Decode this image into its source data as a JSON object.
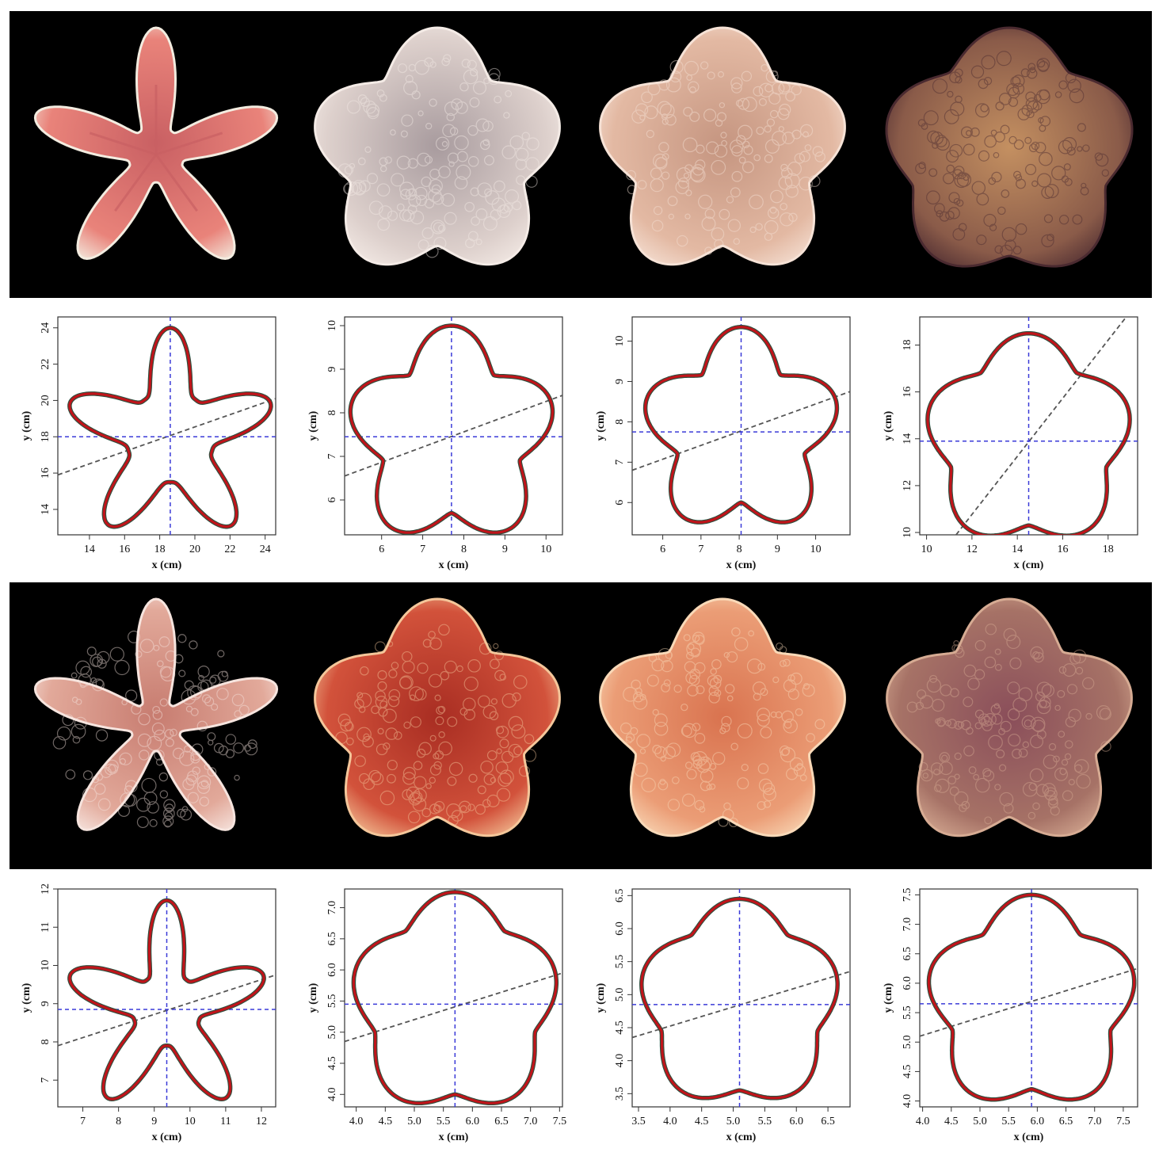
{
  "figure": {
    "colors": {
      "outline_fit": "#c0141a",
      "outline_raw": "#2f4f3f",
      "centroid_lines": "#3a3ad8",
      "orientation_line": "#555555",
      "photo_background": "#000000"
    },
    "photo_rows": [
      {
        "specimens": [
          {
            "shape": "slender-five-armed",
            "palette": [
              "#e9837a",
              "#c96063",
              "#f3ece0"
            ]
          },
          {
            "shape": "cushion-pentagon",
            "palette": [
              "#ddd0cc",
              "#a89b9e",
              "#f4ebe6"
            ]
          },
          {
            "shape": "cushion-pentagon",
            "palette": [
              "#e3b9a3",
              "#c59580",
              "#f6e2d6"
            ]
          },
          {
            "shape": "flat-pentagon",
            "palette": [
              "#8a5b49",
              "#c49061",
              "#4a2a30"
            ]
          }
        ]
      },
      {
        "specimens": [
          {
            "shape": "knobby-five-armed",
            "palette": [
              "#e2a99a",
              "#c77c70",
              "#f6e4de"
            ]
          },
          {
            "shape": "plated-pentagon",
            "palette": [
              "#d2523b",
              "#a82d22",
              "#f4c69a"
            ]
          },
          {
            "shape": "plated-pentagon",
            "palette": [
              "#eb9d76",
              "#d9734f",
              "#f9d9b8"
            ]
          },
          {
            "shape": "plated-pentagon",
            "palette": [
              "#a67266",
              "#8a4e5a",
              "#d6ab93"
            ]
          }
        ]
      }
    ]
  },
  "chart_data": [
    {
      "type": "line",
      "title": "",
      "xlabel": "x (cm)",
      "ylabel": "y (cm)",
      "xlim": [
        12.2,
        24.6
      ],
      "ylim": [
        12.6,
        24.6
      ],
      "xticks": [
        "14",
        "16",
        "18",
        "20",
        "22",
        "24"
      ],
      "yticks": [
        "14",
        "16",
        "18",
        "20",
        "22",
        "24"
      ],
      "outline": {
        "shape": "star",
        "center": [
          18.6,
          18.0
        ],
        "outer_radius": 6.0,
        "inner_radius": 2.5,
        "rotation_deg": 0
      },
      "centroid": [
        18.6,
        18.0
      ],
      "orientation_line": [
        [
          12.2,
          15.9
        ],
        [
          24.6,
          20.1
        ]
      ]
    },
    {
      "type": "line",
      "title": "",
      "xlabel": "x (cm)",
      "ylabel": "y (cm)",
      "xlim": [
        5.1,
        10.4
      ],
      "ylim": [
        5.2,
        10.2
      ],
      "xticks": [
        "6",
        "7",
        "8",
        "9",
        "10"
      ],
      "yticks": [
        "6",
        "7",
        "8",
        "9",
        "10"
      ],
      "outline": {
        "shape": "pentagon",
        "center": [
          7.7,
          7.45
        ],
        "outer_radius": 2.55,
        "inner_radius": 1.75,
        "rotation_deg": 0
      },
      "centroid": [
        7.7,
        7.45
      ],
      "orientation_line": [
        [
          5.1,
          6.55
        ],
        [
          10.4,
          8.4
        ]
      ]
    },
    {
      "type": "line",
      "title": "",
      "xlabel": "x (cm)",
      "ylabel": "y (cm)",
      "xlim": [
        5.2,
        10.9
      ],
      "ylim": [
        5.2,
        10.6
      ],
      "xticks": [
        "6",
        "7",
        "8",
        "9",
        "10"
      ],
      "yticks": [
        "6",
        "7",
        "8",
        "9",
        "10"
      ],
      "outline": {
        "shape": "pentagon",
        "center": [
          8.05,
          7.75
        ],
        "outer_radius": 2.6,
        "inner_radius": 1.75,
        "rotation_deg": 0
      },
      "centroid": [
        8.05,
        7.75
      ],
      "orientation_line": [
        [
          5.2,
          6.8
        ],
        [
          10.9,
          8.75
        ]
      ]
    },
    {
      "type": "line",
      "title": "",
      "xlabel": "x (cm)",
      "ylabel": "y (cm)",
      "xlim": [
        9.7,
        19.3
      ],
      "ylim": [
        9.9,
        19.2
      ],
      "xticks": [
        "10",
        "12",
        "14",
        "16",
        "18"
      ],
      "yticks": [
        "10",
        "12",
        "14",
        "16",
        "18"
      ],
      "outline": {
        "shape": "pentagon",
        "center": [
          14.5,
          13.9
        ],
        "outer_radius": 4.6,
        "inner_radius": 3.6,
        "rotation_deg": 0
      },
      "centroid": [
        14.5,
        13.9
      ],
      "orientation_line": [
        [
          11.3,
          9.9
        ],
        [
          18.8,
          19.2
        ]
      ]
    },
    {
      "type": "line",
      "title": "",
      "xlabel": "x (cm)",
      "ylabel": "y (cm)",
      "xlim": [
        6.3,
        12.4
      ],
      "ylim": [
        6.3,
        12.0
      ],
      "xticks": [
        "7",
        "8",
        "9",
        "10",
        "11",
        "12"
      ],
      "yticks": [
        "7",
        "8",
        "9",
        "10",
        "11",
        "12"
      ],
      "outline": {
        "shape": "star",
        "center": [
          9.35,
          8.85
        ],
        "outer_radius": 2.85,
        "inner_radius": 0.95,
        "rotation_deg": 0
      },
      "centroid": [
        9.35,
        8.85
      ],
      "orientation_line": [
        [
          6.3,
          7.9
        ],
        [
          12.4,
          9.75
        ]
      ]
    },
    {
      "type": "line",
      "title": "",
      "xlabel": "x (cm)",
      "ylabel": "y (cm)",
      "xlim": [
        3.8,
        7.55
      ],
      "ylim": [
        3.8,
        7.3
      ],
      "xticks": [
        "4.0",
        "4.5",
        "5.0",
        "5.5",
        "6.0",
        "6.5",
        "7.0",
        "7.5"
      ],
      "yticks": [
        "4.0",
        "4.5",
        "5.0",
        "5.5",
        "6.0",
        "6.5",
        "7.0"
      ],
      "outline": {
        "shape": "pentagon",
        "center": [
          5.7,
          5.45
        ],
        "outer_radius": 1.8,
        "inner_radius": 1.45,
        "rotation_deg": 0
      },
      "centroid": [
        5.7,
        5.45
      ],
      "orientation_line": [
        [
          3.8,
          4.85
        ],
        [
          7.55,
          5.95
        ]
      ]
    },
    {
      "type": "line",
      "title": "",
      "xlabel": "x (cm)",
      "ylabel": "y (cm)",
      "xlim": [
        3.4,
        6.85
      ],
      "ylim": [
        3.3,
        6.6
      ],
      "xticks": [
        "3.5",
        "4.0",
        "4.5",
        "5.0",
        "5.5",
        "6.0",
        "6.5"
      ],
      "yticks": [
        "3.5",
        "4.0",
        "4.5",
        "5.0",
        "5.5",
        "6.0",
        "6.5"
      ],
      "outline": {
        "shape": "pentagon",
        "center": [
          5.1,
          4.85
        ],
        "outer_radius": 1.6,
        "inner_radius": 1.3,
        "rotation_deg": 0
      },
      "centroid": [
        5.1,
        4.85
      ],
      "orientation_line": [
        [
          3.4,
          4.35
        ],
        [
          6.85,
          5.35
        ]
      ]
    },
    {
      "type": "line",
      "title": "",
      "xlabel": "x (cm)",
      "ylabel": "y (cm)",
      "xlim": [
        3.95,
        7.75
      ],
      "ylim": [
        3.9,
        7.6
      ],
      "xticks": [
        "4.0",
        "4.5",
        "5.0",
        "5.5",
        "6.0",
        "6.5",
        "7.0",
        "7.5"
      ],
      "yticks": [
        "4.0",
        "4.5",
        "5.0",
        "5.5",
        "6.0",
        "6.5",
        "7.0",
        "7.5"
      ],
      "outline": {
        "shape": "pentagon",
        "center": [
          5.9,
          5.65
        ],
        "outer_radius": 1.85,
        "inner_radius": 1.45,
        "rotation_deg": 0
      },
      "centroid": [
        5.9,
        5.65
      ],
      "orientation_line": [
        [
          3.95,
          5.1
        ],
        [
          7.75,
          6.25
        ]
      ]
    }
  ]
}
